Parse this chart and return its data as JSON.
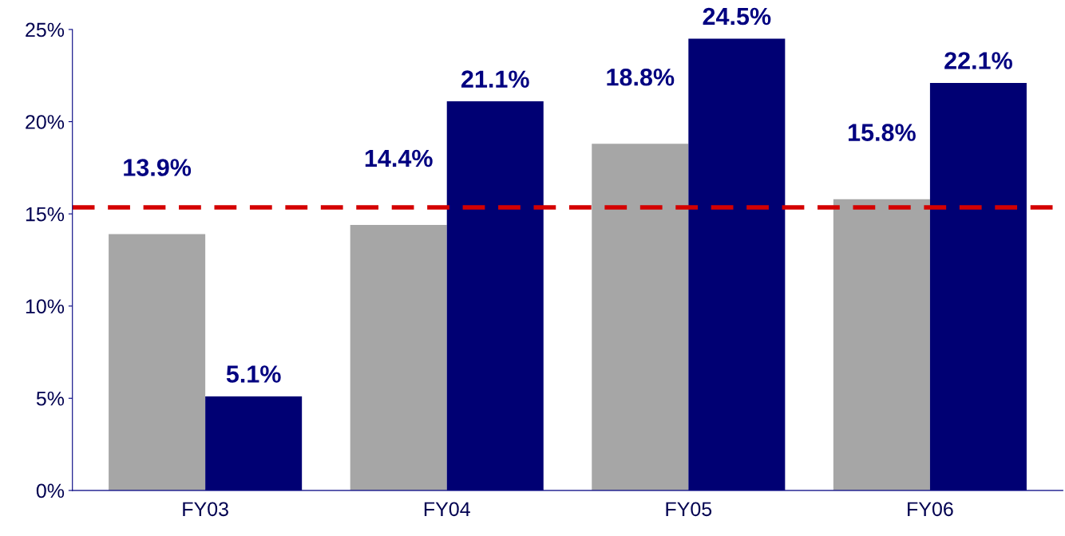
{
  "chart_data": {
    "type": "bar",
    "categories": [
      "FY03",
      "FY04",
      "FY05",
      "FY06"
    ],
    "series": [
      {
        "color": "#a6a6a6",
        "values": [
          13.9,
          14.4,
          18.8,
          15.8
        ],
        "value_labels": [
          "13.9%",
          "14.4%",
          "18.8%",
          "15.8%"
        ]
      },
      {
        "color": "#000073",
        "values": [
          5.1,
          21.1,
          24.5,
          22.1
        ],
        "value_labels": [
          "5.1%",
          "21.1%",
          "24.5%",
          "22.1%"
        ]
      }
    ],
    "ylim": [
      0,
      25
    ],
    "yticks": [
      {
        "value": 0,
        "label": "0%"
      },
      {
        "value": 5,
        "label": "5%"
      },
      {
        "value": 10,
        "label": "10%"
      },
      {
        "value": 15,
        "label": "15%"
      },
      {
        "value": 20,
        "label": "20%"
      },
      {
        "value": 25,
        "label": "25%"
      }
    ],
    "ref_lines": [
      {
        "axis": "y",
        "value": 15.35,
        "color": "#d40000",
        "line_style": "dashed"
      }
    ],
    "grid": false,
    "legend": false
  }
}
